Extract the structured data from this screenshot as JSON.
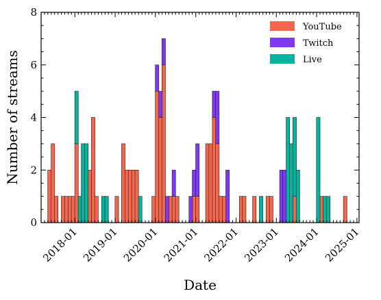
{
  "chart_data": {
    "type": "bar",
    "stacked": true,
    "title": "",
    "xlabel": "Date",
    "ylabel": "Number of streams",
    "ylim": [
      0,
      8
    ],
    "xlim": [
      "2017-03-01",
      "2025-01-20"
    ],
    "yticks": [
      0,
      2,
      4,
      6,
      8
    ],
    "xticks": [
      "2018-01",
      "2019-01",
      "2020-01",
      "2021-01",
      "2022-01",
      "2023-01",
      "2024-01",
      "2025-01"
    ],
    "grid": false,
    "legend_position": "top-right",
    "colors": {
      "YouTube": "#f4674d",
      "Twitch": "#8038f4",
      "Live": "#05b39e"
    },
    "series": [
      {
        "name": "YouTube",
        "points": [
          [
            "2017-05",
            2
          ],
          [
            "2017-06",
            3
          ],
          [
            "2017-07",
            1
          ],
          [
            "2017-09",
            1
          ],
          [
            "2017-10",
            1
          ],
          [
            "2017-11",
            1
          ],
          [
            "2017-12",
            1
          ],
          [
            "2018-01",
            3
          ],
          [
            "2018-05",
            2
          ],
          [
            "2018-06",
            4
          ],
          [
            "2018-07",
            1
          ],
          [
            "2019-01",
            1
          ],
          [
            "2019-03",
            3
          ],
          [
            "2019-04",
            2
          ],
          [
            "2019-05",
            2
          ],
          [
            "2019-06",
            2
          ],
          [
            "2019-07",
            2
          ],
          [
            "2019-12",
            1
          ],
          [
            "2020-01",
            5
          ],
          [
            "2020-02",
            4
          ],
          [
            "2020-03",
            6
          ],
          [
            "2020-05",
            1
          ],
          [
            "2020-06",
            1
          ],
          [
            "2020-07",
            1
          ],
          [
            "2020-12",
            1
          ],
          [
            "2021-01",
            1
          ],
          [
            "2021-04",
            3
          ],
          [
            "2021-05",
            3
          ],
          [
            "2021-06",
            4
          ],
          [
            "2021-07",
            3
          ],
          [
            "2021-08",
            1
          ],
          [
            "2021-09",
            1
          ],
          [
            "2022-02",
            1
          ],
          [
            "2022-03",
            1
          ],
          [
            "2022-06",
            1
          ],
          [
            "2022-10",
            1
          ],
          [
            "2022-11",
            1
          ],
          [
            "2023-06",
            1
          ],
          [
            "2024-02",
            1
          ],
          [
            "2024-09",
            1
          ]
        ]
      },
      {
        "name": "Twitch",
        "points": [
          [
            "2020-01",
            1
          ],
          [
            "2020-02",
            1
          ],
          [
            "2020-03",
            1
          ],
          [
            "2020-04",
            1
          ],
          [
            "2020-06",
            1
          ],
          [
            "2020-11",
            1
          ],
          [
            "2020-12",
            1
          ],
          [
            "2021-01",
            2
          ],
          [
            "2021-06",
            1
          ],
          [
            "2021-07",
            2
          ],
          [
            "2021-10",
            2
          ],
          [
            "2023-02",
            2
          ],
          [
            "2023-03",
            2
          ]
        ]
      },
      {
        "name": "Live",
        "points": [
          [
            "2018-01",
            2
          ],
          [
            "2018-02",
            1
          ],
          [
            "2018-03",
            3
          ],
          [
            "2018-04",
            3
          ],
          [
            "2018-09",
            1
          ],
          [
            "2018-10",
            1
          ],
          [
            "2019-08",
            1
          ],
          [
            "2022-08",
            1
          ],
          [
            "2023-04",
            4
          ],
          [
            "2023-05",
            3
          ],
          [
            "2023-06",
            3
          ],
          [
            "2023-07",
            2
          ],
          [
            "2024-01",
            4
          ],
          [
            "2024-03",
            1
          ],
          [
            "2024-04",
            1
          ]
        ]
      }
    ]
  }
}
